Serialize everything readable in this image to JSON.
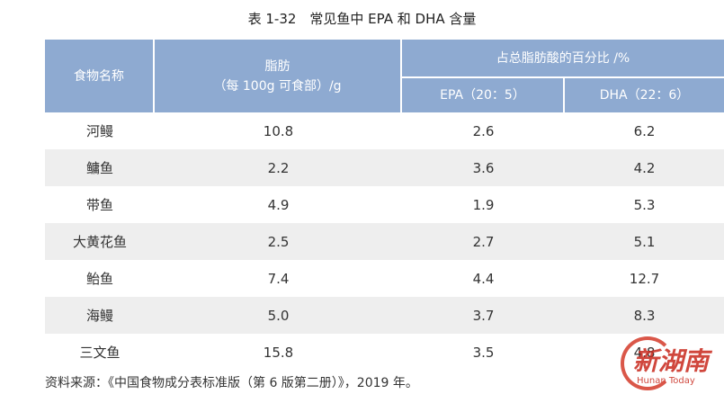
{
  "title": "表 1-32　常见鱼中 EPA 和 DHA 含量",
  "table": {
    "header": {
      "name": "食物名称",
      "fat": [
        "脂肪",
        "（每 100g 可食部）/g"
      ],
      "percent": "占总脂肪酸的百分比 /%",
      "epa": "EPA（20：5）",
      "dha": "DHA（22：6）"
    },
    "rows": [
      [
        "河鳗",
        "10.8",
        "2.6",
        "6.2"
      ],
      [
        "鳙鱼",
        "2.2",
        "3.6",
        "4.2"
      ],
      [
        "带鱼",
        "4.9",
        "1.9",
        "5.3"
      ],
      [
        "大黄花鱼",
        "2.5",
        "2.7",
        "5.1"
      ],
      [
        "鲐鱼",
        "7.4",
        "4.4",
        "12.7"
      ],
      [
        "海鳗",
        "5.0",
        "3.7",
        "8.3"
      ],
      [
        "三文鱼",
        "15.8",
        "3.5",
        "4.8"
      ]
    ]
  },
  "source": "资料来源：《中国食物成分表标准版（第 6 版第二册）》，2019 年。",
  "watermark": {
    "logo": "新湖南",
    "sub": "Hunan Today"
  }
}
